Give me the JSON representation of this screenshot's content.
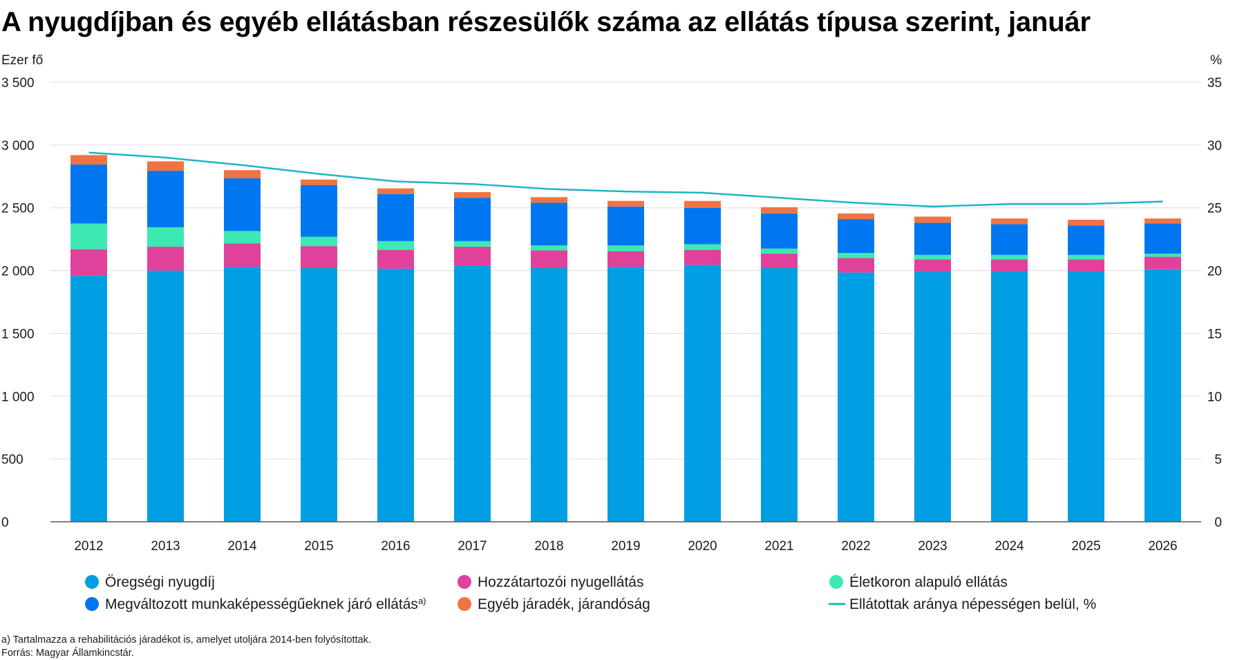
{
  "chart_data": {
    "type": "bar",
    "stacked": true,
    "title": "A nyugdíjban és egyéb ellátásban részesülők száma az ellátás típusa szerint, január",
    "y_left_label": "Ezer fő",
    "y_right_label": "%",
    "ylim_left": [
      0,
      3500
    ],
    "ylim_right": [
      0,
      35
    ],
    "y_left_ticks": [
      "0",
      "500",
      "1 000",
      "1 500",
      "2 000",
      "2 500",
      "3 000",
      "3 500"
    ],
    "y_right_ticks": [
      "0",
      "5",
      "10",
      "15",
      "20",
      "25",
      "30",
      "35"
    ],
    "grid": true,
    "legend_position": "bottom",
    "categories": [
      "2012",
      "2013",
      "2014",
      "2015",
      "2016",
      "2017",
      "2018",
      "2019",
      "2020",
      "2021",
      "2022",
      "2023",
      "2024",
      "2025",
      "2026"
    ],
    "series": [
      {
        "name": "Öregségi nyugdíj",
        "color": "#009fe3",
        "values": [
          1960,
          2000,
          2030,
          2020,
          2015,
          2040,
          2020,
          2030,
          2045,
          2020,
          1985,
          1990,
          1995,
          1995,
          2010
        ]
      },
      {
        "name": "Hozzátartozói nyugellátás",
        "color": "#e0419a",
        "values": [
          210,
          190,
          185,
          175,
          150,
          150,
          140,
          125,
          120,
          115,
          115,
          100,
          95,
          95,
          100
        ]
      },
      {
        "name": "Életkoron alapuló ellátás",
        "color": "#3de8b3",
        "values": [
          205,
          155,
          100,
          75,
          70,
          45,
          40,
          45,
          45,
          40,
          40,
          35,
          35,
          35,
          25
        ]
      },
      {
        "name": "Megváltozott munkaképességűeknek járó ellátás",
        "name_sup": "a)",
        "color": "#0077f0",
        "values": [
          470,
          450,
          420,
          410,
          375,
          345,
          340,
          310,
          290,
          280,
          270,
          255,
          245,
          235,
          240
        ]
      },
      {
        "name": "Egyéb járadék, járandóság",
        "color": "#f07443",
        "values": [
          75,
          75,
          65,
          45,
          45,
          45,
          45,
          45,
          55,
          50,
          45,
          50,
          45,
          45,
          40
        ]
      }
    ],
    "line": {
      "name": "Ellátottak aránya népességen belül, %",
      "color": "#1eb4c4",
      "axis": "right",
      "values": [
        29.4,
        29.0,
        28.4,
        27.7,
        27.1,
        26.9,
        26.5,
        26.3,
        26.2,
        25.8,
        25.4,
        25.1,
        25.3,
        25.3,
        25.5
      ]
    }
  },
  "footnotes": {
    "note_a": "a) Tartalmazza a rehabilitációs járadékot is, amelyet utoljára 2014-ben folyósítottak.",
    "source": "Forrás: Magyar Államkincstár."
  }
}
